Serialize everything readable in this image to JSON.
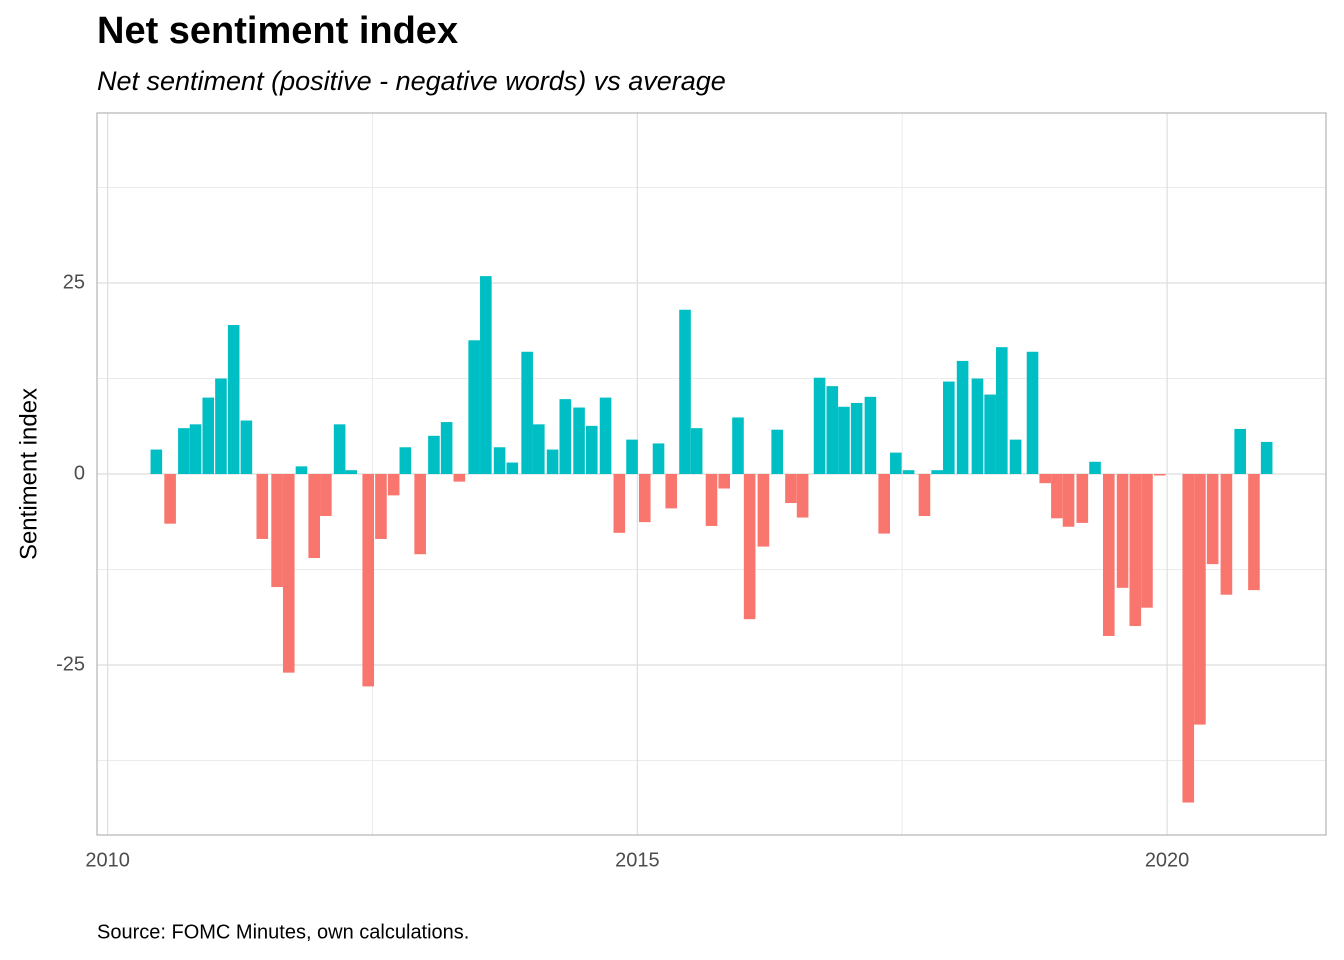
{
  "chart_data": {
    "type": "bar",
    "title": "Net sentiment index",
    "subtitle": "Net sentiment (positive - negative words) vs average",
    "y_label": "Sentiment index",
    "caption": "Source: FOMC Minutes, own calculations.",
    "x": [
      2010.46,
      2010.59,
      2010.72,
      2010.83,
      2010.95,
      2011.07,
      2011.19,
      2011.31,
      2011.46,
      2011.6,
      2011.71,
      2011.83,
      2011.95,
      2012.06,
      2012.19,
      2012.3,
      2012.46,
      2012.58,
      2012.7,
      2012.81,
      2012.95,
      2013.08,
      2013.2,
      2013.32,
      2013.46,
      2013.57,
      2013.7,
      2013.82,
      2013.96,
      2014.07,
      2014.2,
      2014.32,
      2014.45,
      2014.57,
      2014.7,
      2014.83,
      2014.95,
      2015.07,
      2015.2,
      2015.32,
      2015.45,
      2015.56,
      2015.7,
      2015.82,
      2015.95,
      2016.06,
      2016.19,
      2016.32,
      2016.45,
      2016.56,
      2016.72,
      2016.84,
      2016.95,
      2017.07,
      2017.2,
      2017.33,
      2017.44,
      2017.56,
      2017.71,
      2017.83,
      2017.94,
      2018.07,
      2018.21,
      2018.33,
      2018.44,
      2018.57,
      2018.73,
      2018.85,
      2018.96,
      2019.07,
      2019.2,
      2019.32,
      2019.45,
      2019.58,
      2019.7,
      2019.81,
      2019.93,
      2020.2,
      2020.31,
      2020.43,
      2020.56,
      2020.69,
      2020.82,
      2020.94
    ],
    "values": [
      3.2,
      -6.5,
      6,
      6.5,
      10,
      12.5,
      19.5,
      7,
      -8.5,
      -14.8,
      -26,
      1,
      -11,
      -5.5,
      6.5,
      0.5,
      -27.8,
      -8.5,
      -2.8,
      3.5,
      -10.5,
      5,
      6.8,
      -1,
      17.5,
      25.9,
      3.5,
      1.5,
      16,
      6.5,
      3.2,
      9.8,
      8.7,
      6.3,
      10,
      -7.7,
      4.5,
      -6.3,
      4,
      -4.5,
      21.5,
      6,
      -6.8,
      -1.9,
      7.4,
      -19,
      -9.5,
      5.8,
      -3.8,
      -5.7,
      12.6,
      11.5,
      8.8,
      9.3,
      10.1,
      -7.8,
      2.8,
      0.5,
      -5.5,
      0.5,
      12.1,
      14.8,
      12.5,
      10.4,
      16.6,
      4.5,
      16,
      -1.2,
      -5.8,
      -6.9,
      -6.4,
      1.6,
      -21.2,
      -14.9,
      -19.9,
      -17.5,
      -0.2,
      -43,
      -32.8,
      -11.8,
      -15.8,
      5.9,
      -15.2,
      4.2
    ],
    "colors": {
      "positive": "#00BFC4",
      "negative": "#F8766D"
    },
    "xlim": [
      2009.9,
      2021.5
    ],
    "xticks": [
      2010,
      2015,
      2020
    ],
    "xminor": [
      2012.5,
      2017.5
    ],
    "ylim": [
      -47.25,
      47.25
    ],
    "yticks": [
      -25,
      0,
      25
    ],
    "yminor": [
      -37.5,
      -12.5,
      12.5,
      37.5
    ],
    "grid": true
  }
}
